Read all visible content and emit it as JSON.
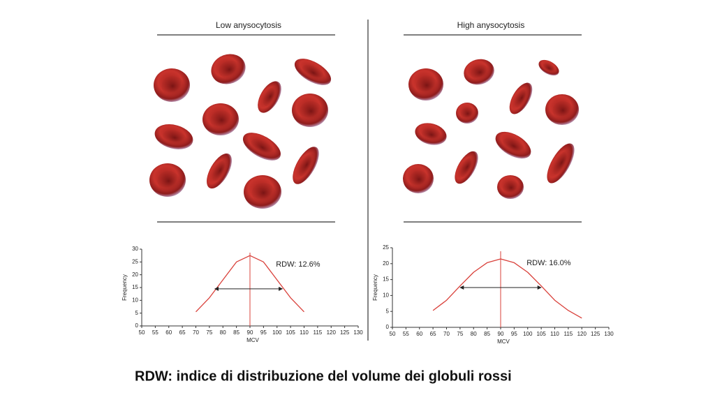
{
  "caption": "RDW: indice di distribuzione del volume dei globuli rossi",
  "chart_data": [
    {
      "type": "line",
      "title": "Low anysocytosis",
      "annotation": "RDW: 12.6%",
      "x_label": "MCV",
      "y_label": "Frequency",
      "x": [
        70,
        75,
        80,
        85,
        90,
        95,
        100,
        105,
        110
      ],
      "series": [
        {
          "color": "#d9403a",
          "values": [
            5.5,
            11,
            18,
            25,
            27.5,
            25,
            18,
            11,
            5.5
          ]
        }
      ],
      "mean_line": 90,
      "range_arrow": {
        "x": [
          77,
          102
        ],
        "y": 14.5
      },
      "xlim": [
        50,
        130
      ],
      "xticks": [
        50,
        55,
        60,
        65,
        70,
        75,
        80,
        85,
        90,
        95,
        100,
        105,
        110,
        115,
        120,
        125,
        130
      ],
      "ylim": [
        0,
        30
      ],
      "yticks": [
        0,
        5,
        10,
        15,
        20,
        25,
        30
      ]
    },
    {
      "type": "line",
      "title": "High anysocytosis",
      "annotation": "RDW: 16.0%",
      "x_label": "MCV",
      "y_label": "Frequency",
      "x": [
        65,
        70,
        75,
        80,
        85,
        90,
        95,
        100,
        105,
        110,
        115,
        120
      ],
      "series": [
        {
          "color": "#d9403a",
          "values": [
            5.3,
            8.5,
            13,
            17.3,
            20.3,
            21.5,
            20.3,
            17.3,
            13,
            8.5,
            5.3,
            2.9
          ]
        }
      ],
      "mean_line": 90,
      "range_arrow": {
        "x": [
          75,
          105
        ],
        "y": 12.5
      },
      "xlim": [
        50,
        130
      ],
      "xticks": [
        50,
        55,
        60,
        65,
        70,
        75,
        80,
        85,
        90,
        95,
        100,
        105,
        110,
        115,
        120,
        125,
        130
      ],
      "ylim": [
        0,
        25
      ],
      "yticks": [
        0,
        5,
        10,
        15,
        20,
        25
      ]
    }
  ]
}
